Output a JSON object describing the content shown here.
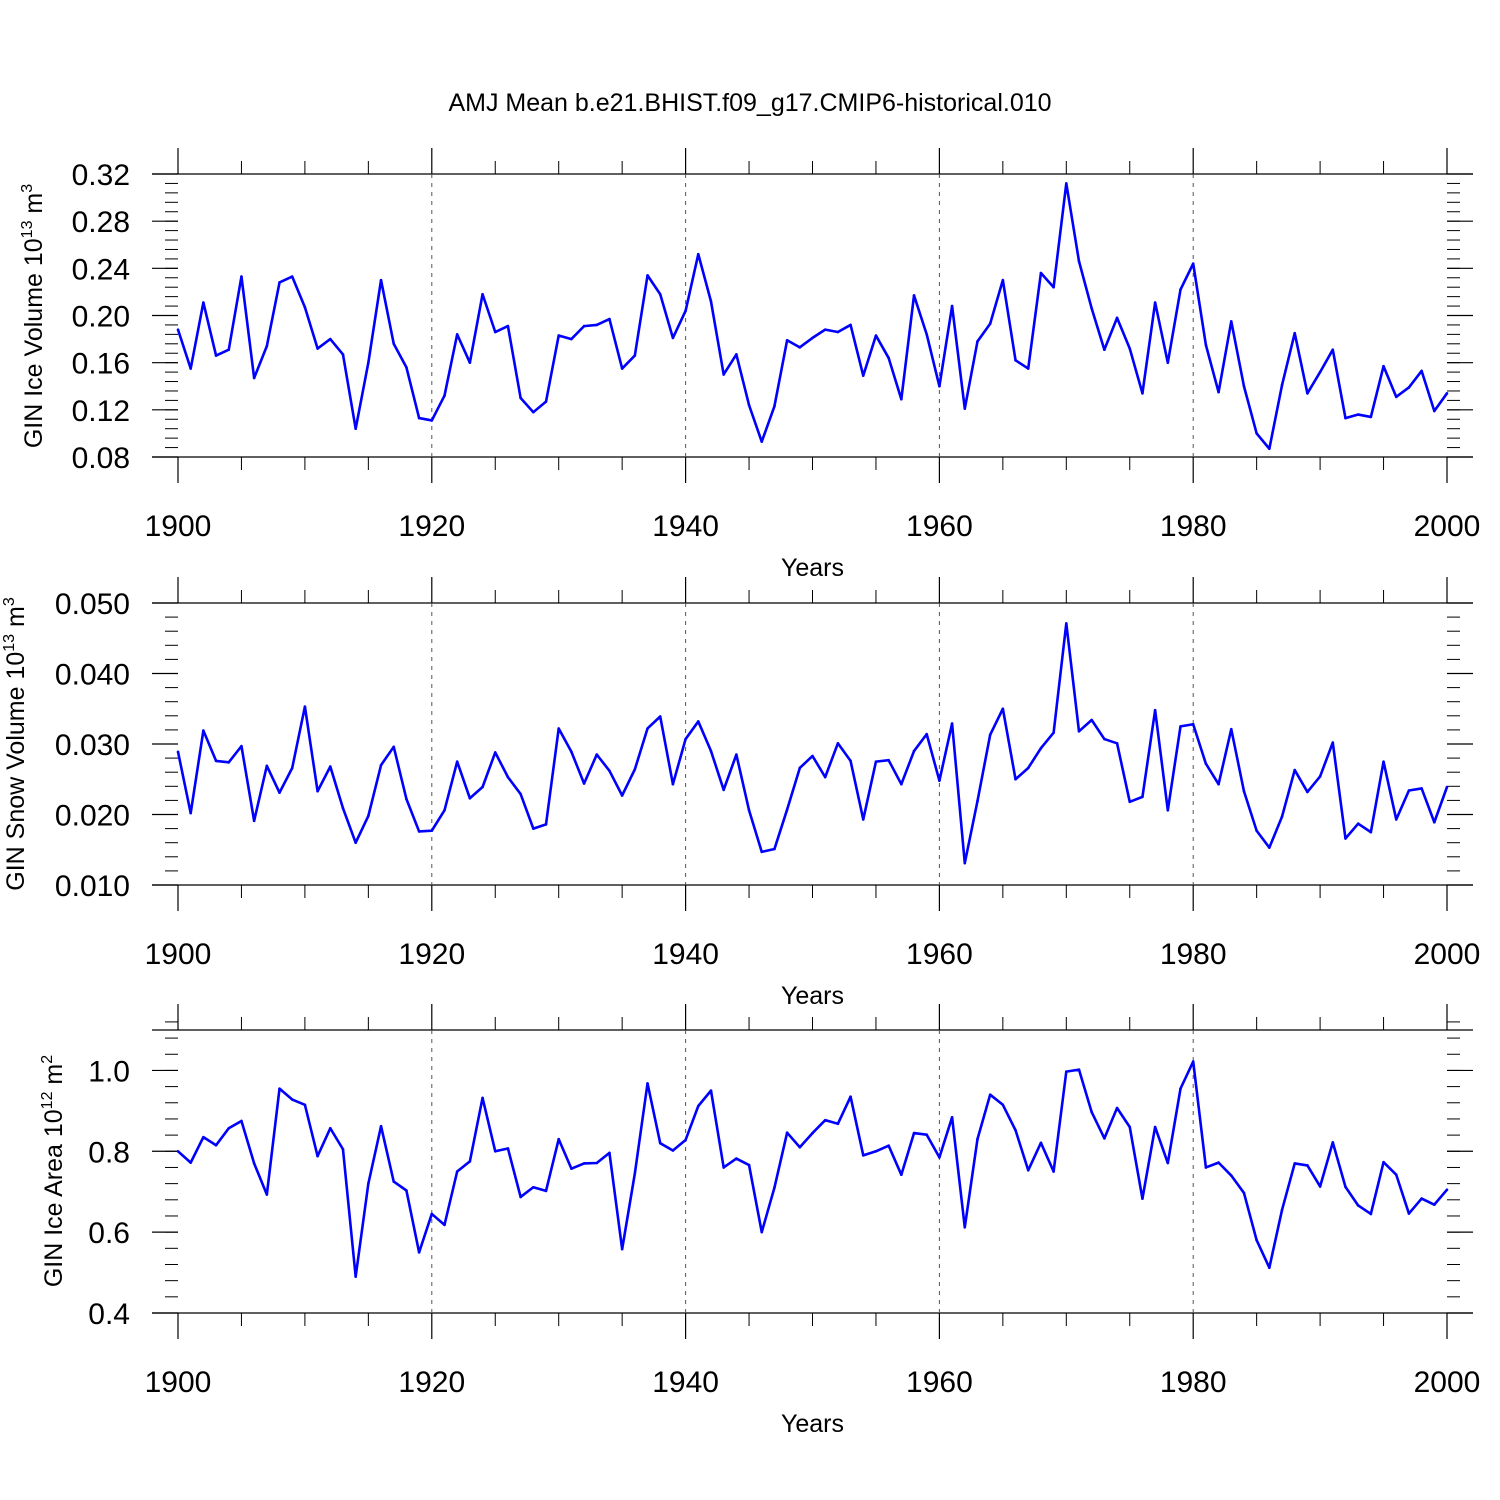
{
  "title": "AMJ Mean b.e21.BHIST.f09_g17.CMIP6-historical.010",
  "colors": {
    "line": "#0000ff",
    "axis": "#000000",
    "grid": "#555555"
  },
  "chart_data": [
    {
      "type": "line",
      "ylabel_base": "GIN Ice Volume 10",
      "ylabel_exp": "13",
      "ylabel_unit": " m",
      "ylabel_unit_exp": "3",
      "xlabel": "Years",
      "xlim": [
        1900,
        2000
      ],
      "ylim": [
        0.08,
        0.32
      ],
      "xticks": [
        1900,
        1920,
        1940,
        1960,
        1980,
        2000
      ],
      "xtick_labels": [
        "1900",
        "1920",
        "1940",
        "1960",
        "1980",
        "2000"
      ],
      "yticks": [
        0.08,
        0.12,
        0.16,
        0.2,
        0.24,
        0.28,
        0.32
      ],
      "ytick_labels": [
        "0.08",
        "0.12",
        "0.16",
        "0.20",
        "0.24",
        "0.28",
        "0.32"
      ],
      "minor_ytick_step": 0.008,
      "axis_top": 0.32,
      "axis_bottom": 0.08,
      "x_start": 1900,
      "values": [
        0.188,
        0.155,
        0.211,
        0.166,
        0.171,
        0.233,
        0.147,
        0.174,
        0.228,
        0.233,
        0.207,
        0.172,
        0.18,
        0.167,
        0.104,
        0.16,
        0.23,
        0.176,
        0.156,
        0.113,
        0.111,
        0.132,
        0.184,
        0.16,
        0.218,
        0.186,
        0.191,
        0.13,
        0.118,
        0.127,
        0.183,
        0.18,
        0.191,
        0.192,
        0.197,
        0.155,
        0.166,
        0.234,
        0.218,
        0.181,
        0.204,
        0.252,
        0.212,
        0.15,
        0.167,
        0.124,
        0.093,
        0.123,
        0.179,
        0.173,
        0.181,
        0.188,
        0.186,
        0.192,
        0.149,
        0.183,
        0.164,
        0.129,
        0.217,
        0.184,
        0.14,
        0.208,
        0.121,
        0.178,
        0.193,
        0.23,
        0.162,
        0.155,
        0.236,
        0.224,
        0.312,
        0.246,
        0.206,
        0.171,
        0.198,
        0.172,
        0.134,
        0.211,
        0.16,
        0.222,
        0.244,
        0.175,
        0.135,
        0.195,
        0.14,
        0.1,
        0.087,
        0.141,
        0.185,
        0.134,
        0.152,
        0.171,
        0.113,
        0.116,
        0.114,
        0.157,
        0.131,
        0.139,
        0.153,
        0.119,
        0.134
      ]
    },
    {
      "type": "line",
      "ylabel_base": "GIN Snow Volume 10",
      "ylabel_exp": "13",
      "ylabel_unit": " m",
      "ylabel_unit_exp": "3",
      "xlabel": "Years",
      "xlim": [
        1900,
        2000
      ],
      "ylim": [
        0.01,
        0.05
      ],
      "xticks": [
        1900,
        1920,
        1940,
        1960,
        1980,
        2000
      ],
      "xtick_labels": [
        "1900",
        "1920",
        "1940",
        "1960",
        "1980",
        "2000"
      ],
      "yticks": [
        0.01,
        0.02,
        0.03,
        0.04,
        0.05
      ],
      "ytick_labels": [
        "0.010",
        "0.020",
        "0.030",
        "0.040",
        "0.050"
      ],
      "minor_ytick_step": 0.002,
      "axis_top": 0.05,
      "axis_bottom": 0.01,
      "x_start": 1900,
      "values": [
        0.0289,
        0.0202,
        0.0319,
        0.0276,
        0.0274,
        0.0297,
        0.0191,
        0.0269,
        0.0231,
        0.0266,
        0.0353,
        0.0233,
        0.0268,
        0.0209,
        0.016,
        0.0198,
        0.027,
        0.0296,
        0.0222,
        0.0176,
        0.0177,
        0.0206,
        0.0275,
        0.0223,
        0.0239,
        0.0288,
        0.0253,
        0.0229,
        0.018,
        0.0186,
        0.0322,
        0.0289,
        0.0244,
        0.0285,
        0.0262,
        0.0227,
        0.0264,
        0.0322,
        0.0339,
        0.0243,
        0.0307,
        0.0332,
        0.029,
        0.0235,
        0.0285,
        0.0206,
        0.0147,
        0.0151,
        0.0207,
        0.0266,
        0.0283,
        0.0253,
        0.0301,
        0.0276,
        0.0193,
        0.0275,
        0.0277,
        0.0243,
        0.029,
        0.0314,
        0.0248,
        0.0329,
        0.0131,
        0.0219,
        0.0313,
        0.035,
        0.025,
        0.0266,
        0.0294,
        0.0316,
        0.0471,
        0.0318,
        0.0334,
        0.0307,
        0.0301,
        0.0218,
        0.0225,
        0.0348,
        0.0206,
        0.0325,
        0.0328,
        0.0272,
        0.0243,
        0.0321,
        0.0233,
        0.0177,
        0.0153,
        0.0197,
        0.0263,
        0.0232,
        0.0254,
        0.0302,
        0.0166,
        0.0187,
        0.0175,
        0.0275,
        0.0193,
        0.0234,
        0.0237,
        0.0189,
        0.0239
      ]
    },
    {
      "type": "line",
      "ylabel_base": "GIN Ice Area 10",
      "ylabel_exp": "12",
      "ylabel_unit": " m",
      "ylabel_unit_exp": "2",
      "xlabel": "Years",
      "xlim": [
        1900,
        2000
      ],
      "ylim": [
        0.4,
        1.1
      ],
      "xticks": [
        1900,
        1920,
        1940,
        1960,
        1980,
        2000
      ],
      "xtick_labels": [
        "1900",
        "1920",
        "1940",
        "1960",
        "1980",
        "2000"
      ],
      "yticks": [
        0.4,
        0.6,
        0.8,
        1.0
      ],
      "ytick_labels": [
        "0.4",
        "0.6",
        "0.8",
        "1.0"
      ],
      "minor_ytick_step": 0.04,
      "axis_top": 1.1,
      "axis_bottom": 0.4,
      "x_start": 1900,
      "values": [
        0.8,
        0.772,
        0.835,
        0.815,
        0.857,
        0.875,
        0.77,
        0.693,
        0.955,
        0.928,
        0.915,
        0.788,
        0.857,
        0.805,
        0.49,
        0.72,
        0.862,
        0.725,
        0.703,
        0.55,
        0.645,
        0.618,
        0.75,
        0.775,
        0.932,
        0.8,
        0.807,
        0.687,
        0.711,
        0.702,
        0.83,
        0.757,
        0.77,
        0.771,
        0.796,
        0.558,
        0.745,
        0.968,
        0.82,
        0.802,
        0.828,
        0.912,
        0.95,
        0.76,
        0.782,
        0.766,
        0.6,
        0.71,
        0.846,
        0.81,
        0.845,
        0.877,
        0.868,
        0.935,
        0.79,
        0.8,
        0.814,
        0.742,
        0.845,
        0.841,
        0.785,
        0.884,
        0.612,
        0.83,
        0.94,
        0.915,
        0.852,
        0.753,
        0.821,
        0.75,
        0.997,
        1.002,
        0.897,
        0.832,
        0.907,
        0.86,
        0.683,
        0.86,
        0.771,
        0.955,
        1.022,
        0.76,
        0.772,
        0.74,
        0.697,
        0.58,
        0.512,
        0.655,
        0.77,
        0.765,
        0.713,
        0.822,
        0.712,
        0.666,
        0.645,
        0.773,
        0.742,
        0.646,
        0.683,
        0.668,
        0.705
      ]
    }
  ]
}
